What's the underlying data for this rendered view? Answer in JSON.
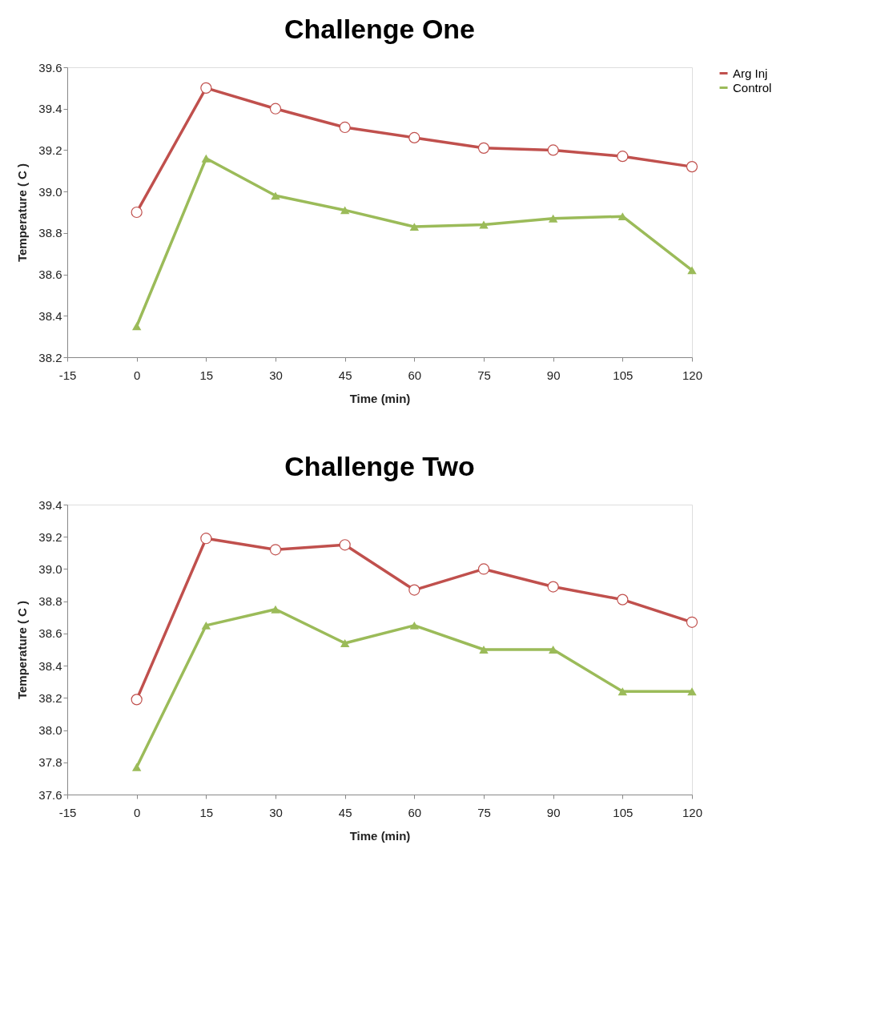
{
  "chart_data": [
    {
      "type": "line",
      "title": "Challenge One",
      "xlabel": "Time (min)",
      "ylabel": "Temperature ( C )",
      "x": [
        0,
        15,
        30,
        45,
        60,
        75,
        90,
        105,
        120
      ],
      "xlim": [
        -15,
        120
      ],
      "xticks": [
        -15,
        0,
        15,
        30,
        45,
        60,
        75,
        90,
        105,
        120
      ],
      "ylim": [
        38.2,
        39.6
      ],
      "yticks": [
        {
          "value": 38.2,
          "label": "38.2"
        },
        {
          "value": 38.4,
          "label": "38.4"
        },
        {
          "value": 38.6,
          "label": "38.6"
        },
        {
          "value": 38.8,
          "label": "38.8"
        },
        {
          "value": 39.0,
          "label": "39.0"
        },
        {
          "value": 39.2,
          "label": "39.2"
        },
        {
          "value": 39.4,
          "label": "39.4"
        },
        {
          "value": 39.6,
          "label": "39.6"
        }
      ],
      "grid": false,
      "legend": "right",
      "series": [
        {
          "name": "Arg Inj",
          "color": "#c0504d",
          "marker": "circle",
          "values": [
            38.9,
            39.5,
            39.4,
            39.31,
            39.26,
            39.21,
            39.2,
            39.17,
            39.12
          ]
        },
        {
          "name": "Control",
          "color": "#9bbb59",
          "marker": "triangle",
          "values": [
            38.35,
            39.16,
            38.98,
            38.91,
            38.83,
            38.84,
            38.87,
            38.88,
            38.62
          ]
        }
      ]
    },
    {
      "type": "line",
      "title": "Challenge Two",
      "xlabel": "Time (min)",
      "ylabel": "Temperature ( C )",
      "x": [
        0,
        15,
        30,
        45,
        60,
        75,
        90,
        105,
        120
      ],
      "xlim": [
        -15,
        120
      ],
      "xticks": [
        -15,
        0,
        15,
        30,
        45,
        60,
        75,
        90,
        105,
        120
      ],
      "ylim": [
        37.6,
        39.4
      ],
      "yticks": [
        {
          "value": 37.6,
          "label": "37.6"
        },
        {
          "value": 37.8,
          "label": "37.8"
        },
        {
          "value": 38.0,
          "label": "38.0"
        },
        {
          "value": 38.2,
          "label": "38.2"
        },
        {
          "value": 38.4,
          "label": "38.4"
        },
        {
          "value": 38.6,
          "label": "38.6"
        },
        {
          "value": 38.8,
          "label": "38.8"
        },
        {
          "value": 39.0,
          "label": "39.0"
        },
        {
          "value": 39.2,
          "label": "39.2"
        },
        {
          "value": 39.4,
          "label": "39.4"
        }
      ],
      "grid": false,
      "legend": "right",
      "series": [
        {
          "name": "Arg Inj",
          "color": "#c0504d",
          "marker": "circle",
          "values": [
            38.19,
            39.19,
            39.12,
            39.15,
            38.87,
            39.0,
            38.89,
            38.81,
            38.67
          ]
        },
        {
          "name": "Control",
          "color": "#9bbb59",
          "marker": "triangle",
          "values": [
            37.77,
            38.65,
            38.75,
            38.54,
            38.65,
            38.5,
            38.5,
            38.24,
            38.24
          ]
        }
      ]
    }
  ]
}
